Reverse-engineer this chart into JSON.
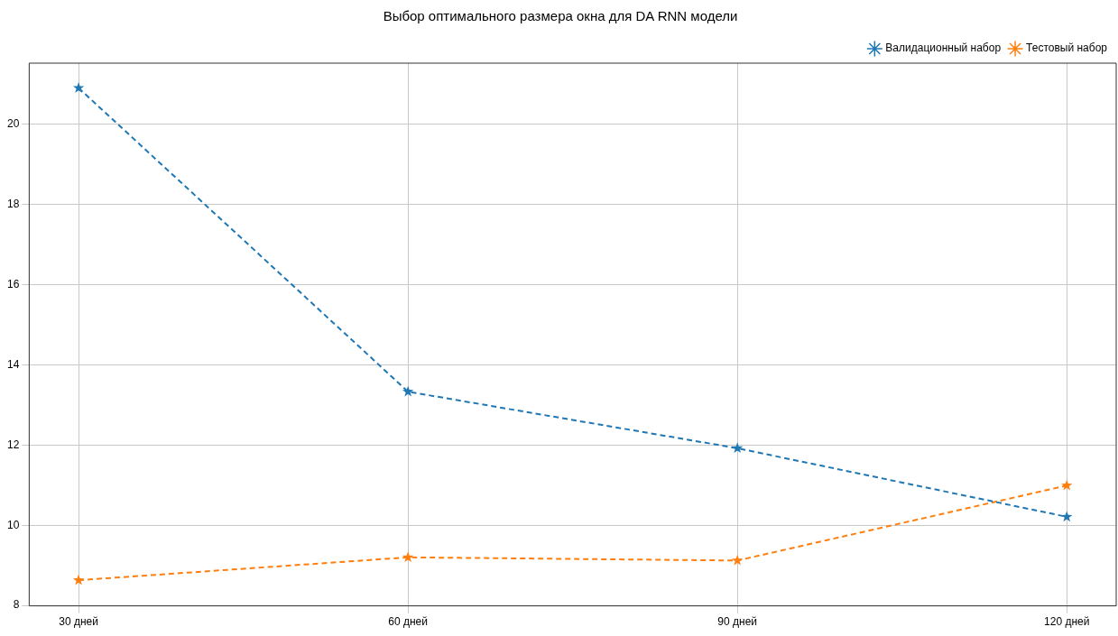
{
  "chart_data": {
    "type": "line",
    "title": "Выбор оптимального размера окна для DA RNN модели",
    "categories": [
      "30 дней",
      "60 дней",
      "90 дней",
      "120 дней"
    ],
    "series": [
      {
        "name": "Валидационный набор",
        "color": "#1f77b4",
        "values": [
          20.9,
          13.33,
          11.92,
          10.21
        ]
      },
      {
        "name": "Тестовый набор",
        "color": "#ff7f0e",
        "values": [
          8.63,
          9.2,
          9.12,
          10.99
        ]
      }
    ],
    "ylim": [
      7.99,
      21.52
    ],
    "yticks": [
      8,
      10,
      12,
      14,
      16,
      18,
      20
    ],
    "grid": true,
    "legend": "top right",
    "marker": "star",
    "line_style": "dashed"
  }
}
